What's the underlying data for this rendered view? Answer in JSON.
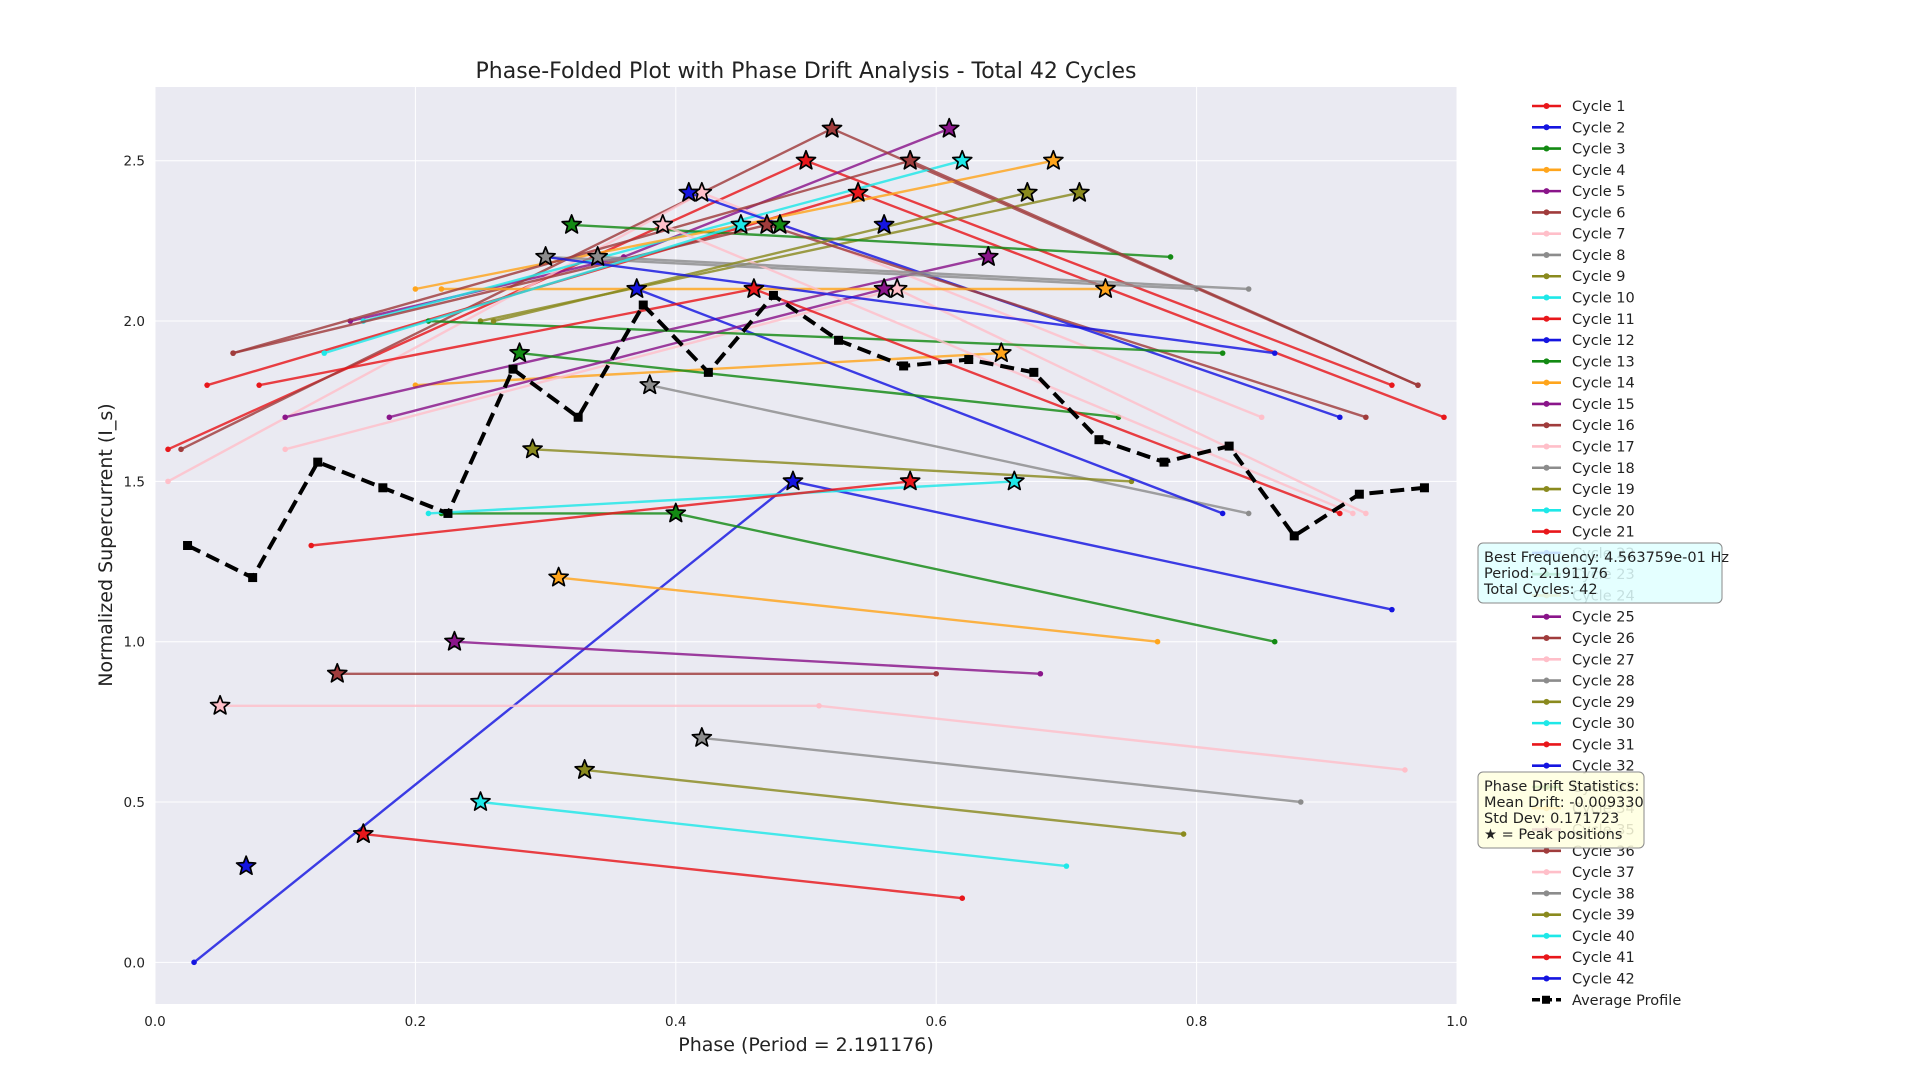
{
  "chart_data": {
    "type": "line",
    "title": "Phase-Folded Plot with Phase Drift Analysis - Total 42 Cycles",
    "xlabel": "Phase (Period = 2.191176)",
    "ylabel": "Normalized Supercurrent (I_s)",
    "xlim": [
      0.0,
      1.0
    ],
    "ylim": [
      -0.13,
      2.73
    ],
    "xticks": [
      "0.0",
      "0.2",
      "0.4",
      "0.6",
      "0.8",
      "1.0"
    ],
    "yticks": [
      "0.0",
      "0.5",
      "1.0",
      "1.5",
      "2.0",
      "2.5"
    ],
    "grid": true,
    "legend_position": "outside-right",
    "colors": [
      "#e8171b",
      "#1515e0",
      "#138a13",
      "#ffa51c",
      "#8a158a",
      "#a03c3c",
      "#ffbfc9",
      "#8c8c8c",
      "#8a8a1e",
      "#1ee8e8"
    ],
    "series": [
      {
        "name": "Cycle 1",
        "x": [
          0.01,
          0.5,
          0.95
        ],
        "y": [
          1.6,
          2.5,
          1.8
        ],
        "peak": [
          0.5,
          2.5
        ]
      },
      {
        "name": "Cycle 2",
        "x": [
          0.03,
          0.49,
          0.95
        ],
        "y": [
          0.0,
          1.5,
          1.1
        ],
        "peak": [
          0.49,
          1.5
        ]
      },
      {
        "name": "Cycle 3",
        "x": [
          0.22,
          0.4,
          0.86
        ],
        "y": [
          1.4,
          1.4,
          1.0
        ],
        "peak": [
          0.4,
          1.4
        ]
      },
      {
        "name": "Cycle 4",
        "x": [
          0.2,
          0.65
        ],
        "y": [
          1.8,
          1.9
        ],
        "peak": [
          0.65,
          1.9
        ]
      },
      {
        "name": "Cycle 5",
        "x": [
          0.15,
          0.36,
          0.61
        ],
        "y": [
          2.0,
          2.2,
          2.6
        ],
        "peak": [
          0.61,
          2.6
        ]
      },
      {
        "name": "Cycle 6",
        "x": [
          0.02,
          0.52,
          0.97
        ],
        "y": [
          1.6,
          2.6,
          1.8
        ],
        "peak": [
          0.52,
          2.6
        ]
      },
      {
        "name": "Cycle 7",
        "x": [
          0.01,
          0.42,
          0.85
        ],
        "y": [
          1.5,
          2.4,
          1.7
        ],
        "peak": [
          0.42,
          2.4
        ]
      },
      {
        "name": "Cycle 8",
        "x": [
          0.38,
          0.84
        ],
        "y": [
          1.8,
          1.4
        ],
        "peak": [
          0.38,
          1.8
        ]
      },
      {
        "name": "Cycle 9",
        "x": [
          0.25,
          0.71
        ],
        "y": [
          2.0,
          2.4
        ],
        "peak": [
          0.71,
          2.4
        ]
      },
      {
        "name": "Cycle 10",
        "x": [
          0.16,
          0.62
        ],
        "y": [
          2.0,
          2.5
        ],
        "peak": [
          0.62,
          2.5
        ]
      },
      {
        "name": "Cycle 11",
        "x": [
          0.04,
          0.54,
          0.99
        ],
        "y": [
          1.8,
          2.4,
          1.7
        ],
        "peak": [
          0.54,
          2.4
        ]
      },
      {
        "name": "Cycle 12",
        "x": [
          0.41,
          0.91
        ],
        "y": [
          2.4,
          1.7
        ],
        "peak": [
          0.41,
          2.4
        ]
      },
      {
        "name": "Cycle 13",
        "x": [
          0.32,
          0.78
        ],
        "y": [
          2.3,
          2.2
        ],
        "peak": [
          0.32,
          2.3
        ]
      },
      {
        "name": "Cycle 14",
        "x": [
          0.2,
          0.45,
          0.69
        ],
        "y": [
          2.1,
          2.3,
          2.5
        ],
        "peak": [
          0.69,
          2.5
        ]
      },
      {
        "name": "Cycle 15",
        "x": [
          0.1,
          0.64
        ],
        "y": [
          1.7,
          2.2
        ],
        "peak": [
          0.64,
          2.2
        ]
      },
      {
        "name": "Cycle 16",
        "x": [
          0.06,
          0.47,
          0.93
        ],
        "y": [
          1.9,
          2.3,
          1.7
        ],
        "peak": [
          0.47,
          2.3
        ]
      },
      {
        "name": "Cycle 17",
        "x": [
          0.1,
          0.57,
          0.93
        ],
        "y": [
          1.6,
          2.1,
          1.4
        ],
        "peak": [
          0.57,
          2.1
        ]
      },
      {
        "name": "Cycle 18",
        "x": [
          0.3,
          0.8
        ],
        "y": [
          2.2,
          2.1
        ],
        "peak": [
          0.3,
          2.2
        ]
      },
      {
        "name": "Cycle 19",
        "x": [
          0.29,
          0.75
        ],
        "y": [
          1.6,
          1.5
        ],
        "peak": [
          0.29,
          1.6
        ]
      },
      {
        "name": "Cycle 20",
        "x": [
          0.21,
          0.66
        ],
        "y": [
          1.4,
          1.5
        ],
        "peak": [
          0.66,
          1.5
        ]
      },
      {
        "name": "Cycle 21",
        "x": [
          0.12,
          0.58
        ],
        "y": [
          1.3,
          1.5
        ],
        "peak": [
          0.58,
          1.5
        ]
      },
      {
        "name": "Cycle 22",
        "x": [
          0.37,
          0.82
        ],
        "y": [
          2.1,
          1.4
        ],
        "peak": [
          0.37,
          2.1
        ]
      },
      {
        "name": "Cycle 23",
        "x": [
          0.28,
          0.74
        ],
        "y": [
          1.9,
          1.7
        ],
        "peak": [
          0.28,
          1.9
        ]
      },
      {
        "name": "Cycle 24",
        "x": [
          0.31,
          0.77
        ],
        "y": [
          1.2,
          1.0
        ],
        "peak": [
          0.31,
          1.2
        ]
      },
      {
        "name": "Cycle 25",
        "x": [
          0.23,
          0.68
        ],
        "y": [
          1.0,
          0.9
        ],
        "peak": [
          0.23,
          1.0
        ]
      },
      {
        "name": "Cycle 26",
        "x": [
          0.14,
          0.6
        ],
        "y": [
          0.9,
          0.9
        ],
        "peak": [
          0.14,
          0.9
        ]
      },
      {
        "name": "Cycle 27",
        "x": [
          0.05,
          0.51,
          0.96
        ],
        "y": [
          0.8,
          0.8,
          0.6
        ],
        "peak": [
          0.05,
          0.8
        ]
      },
      {
        "name": "Cycle 28",
        "x": [
          0.42,
          0.88
        ],
        "y": [
          0.7,
          0.5
        ],
        "peak": [
          0.42,
          0.7
        ]
      },
      {
        "name": "Cycle 29",
        "x": [
          0.33,
          0.79
        ],
        "y": [
          0.6,
          0.4
        ],
        "peak": [
          0.33,
          0.6
        ]
      },
      {
        "name": "Cycle 30",
        "x": [
          0.25,
          0.7
        ],
        "y": [
          0.5,
          0.3
        ],
        "peak": [
          0.25,
          0.5
        ]
      },
      {
        "name": "Cycle 31",
        "x": [
          0.16,
          0.62
        ],
        "y": [
          0.4,
          0.2
        ],
        "peak": [
          0.16,
          0.4
        ]
      },
      {
        "name": "Cycle 32",
        "x": [
          0.07
        ],
        "y": [
          0.3
        ],
        "peak": [
          0.07,
          0.3
        ]
      },
      {
        "name": "Cycle 33",
        "x": [
          0.21,
          0.82
        ],
        "y": [
          2.0,
          1.9
        ],
        "peak": [
          0.48,
          2.3
        ]
      },
      {
        "name": "Cycle 34",
        "x": [
          0.22,
          0.73
        ],
        "y": [
          2.1,
          2.1
        ],
        "peak": [
          0.73,
          2.1
        ]
      },
      {
        "name": "Cycle 35",
        "x": [
          0.18,
          0.56
        ],
        "y": [
          1.7,
          2.1
        ],
        "peak": [
          0.56,
          2.1
        ]
      },
      {
        "name": "Cycle 36",
        "x": [
          0.06,
          0.58,
          0.97
        ],
        "y": [
          1.9,
          2.5,
          1.8
        ],
        "peak": [
          0.58,
          2.5
        ]
      },
      {
        "name": "Cycle 37",
        "x": [
          0.39,
          0.92
        ],
        "y": [
          2.3,
          1.4
        ],
        "peak": [
          0.39,
          2.3
        ]
      },
      {
        "name": "Cycle 38",
        "x": [
          0.34,
          0.84
        ],
        "y": [
          2.2,
          2.1
        ],
        "peak": [
          0.34,
          2.2
        ]
      },
      {
        "name": "Cycle 39",
        "x": [
          0.26,
          0.67
        ],
        "y": [
          2.0,
          2.4
        ],
        "peak": [
          0.67,
          2.4
        ]
      },
      {
        "name": "Cycle 40",
        "x": [
          0.13,
          0.45
        ],
        "y": [
          1.9,
          2.3
        ],
        "peak": [
          0.45,
          2.3
        ]
      },
      {
        "name": "Cycle 41",
        "x": [
          0.08,
          0.46,
          0.91
        ],
        "y": [
          1.8,
          2.1,
          1.4
        ],
        "peak": [
          0.46,
          2.1
        ]
      },
      {
        "name": "Cycle 42",
        "x": [
          0.3,
          0.86
        ],
        "y": [
          2.2,
          1.9
        ],
        "peak": [
          0.56,
          2.3
        ]
      }
    ],
    "average_profile": {
      "name": "Average Profile",
      "x": [
        0.025,
        0.075,
        0.125,
        0.175,
        0.225,
        0.275,
        0.325,
        0.375,
        0.425,
        0.475,
        0.525,
        0.575,
        0.625,
        0.675,
        0.725,
        0.775,
        0.825,
        0.875,
        0.925,
        0.975
      ],
      "y": [
        1.3,
        1.2,
        1.56,
        1.48,
        1.4,
        1.85,
        1.7,
        2.05,
        1.84,
        2.08,
        1.94,
        1.86,
        1.88,
        1.84,
        1.63,
        1.56,
        1.61,
        1.33,
        1.46,
        1.48
      ]
    },
    "annotations": {
      "frequency_box": [
        "Best Frequency: 4.563759e-01 Hz",
        "Period: 2.191176",
        "Total Cycles: 42"
      ],
      "drift_box": [
        "Phase Drift Statistics:",
        "Mean Drift: -0.009330",
        "Std Dev: 0.171723",
        "★ = Peak positions"
      ]
    }
  }
}
